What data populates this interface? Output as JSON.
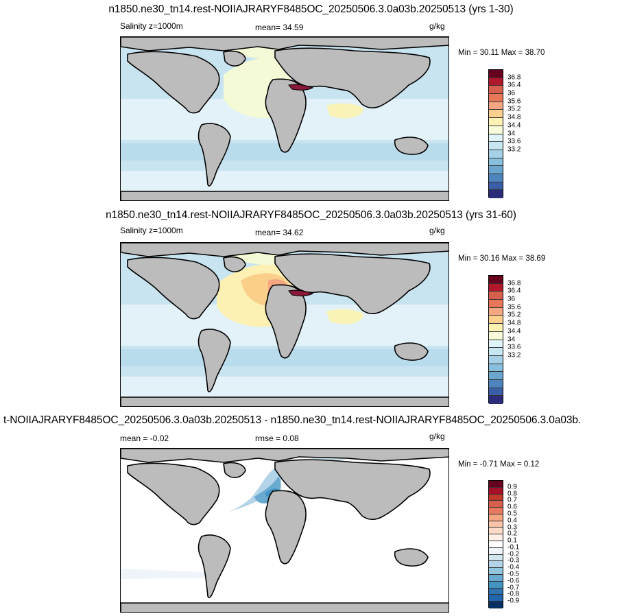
{
  "panels": [
    {
      "title": "n1850.ne30_tn14.rest-NOIIAJRARYF8485OC_20250506.3.0a03b.20250513 (yrs 1-30)",
      "left_label": "Salinity z=1000m",
      "center_label": "mean=  34.59",
      "units": "g/kg",
      "minmax": "Min =  30.11 Max =  38.70",
      "colorbar_labels": [
        "36.8",
        "36.4",
        "36",
        "35.6",
        "35.2",
        "34.8",
        "34.4",
        "34",
        "33.6",
        "33.2"
      ],
      "colorbar_colors": [
        "#67001f",
        "#b2182b",
        "#d6604d",
        "#e8775a",
        "#f4a582",
        "#fbcf8e",
        "#fdf0b3",
        "#f7fbd9",
        "#e0f3f8",
        "#c6e6f2",
        "#a5d0e6",
        "#87bfdc",
        "#6ba6cf",
        "#4f85bf",
        "#3a5ea8",
        "#2c2c7a"
      ]
    },
    {
      "title": "n1850.ne30_tn14.rest-NOIIAJRARYF8485OC_20250506.3.0a03b.20250513 (yrs 31-60)",
      "left_label": "Salinity z=1000m",
      "center_label": "mean=  34.62",
      "units": "g/kg",
      "minmax": "Min =  30.16 Max =  38.69",
      "colorbar_labels": [
        "36.8",
        "36.4",
        "36",
        "35.6",
        "35.2",
        "34.8",
        "34.4",
        "34",
        "33.6",
        "33.2"
      ],
      "colorbar_colors": [
        "#67001f",
        "#b2182b",
        "#d6604d",
        "#e8775a",
        "#f4a582",
        "#fbcf8e",
        "#fdf0b3",
        "#f7fbd9",
        "#e0f3f8",
        "#c6e6f2",
        "#a5d0e6",
        "#87bfdc",
        "#6ba6cf",
        "#4f85bf",
        "#3a5ea8",
        "#2c2c7a"
      ]
    },
    {
      "title": "t-NOIIAJRARYF8485OC_20250506.3.0a03b.20250513 - n1850.ne30_tn14.rest-NOIIAJRARYF8485OC_20250506.3.0a03b.",
      "left_label": "mean =  -0.02",
      "center_label": "rmse =   0.08",
      "units": "g/kg",
      "minmax": "Min =  -0.71 Max =   0.12",
      "colorbar_labels": [
        "0.9",
        "0.8",
        "0.7",
        "0.6",
        "0.5",
        "0.4",
        "0.3",
        "0.2",
        "0.1",
        "-0.1",
        "-0.2",
        "-0.3",
        "-0.4",
        "-0.5",
        "-0.6",
        "-0.7",
        "-0.8",
        "-0.9"
      ],
      "colorbar_colors": [
        "#67001f",
        "#a50f2a",
        "#c0392b",
        "#d6604d",
        "#e8785f",
        "#f4a582",
        "#f9c4a8",
        "#fddbc7",
        "#fff0e8",
        "#ffffff",
        "#eef4fa",
        "#d1e5f0",
        "#b3d4e8",
        "#92c5de",
        "#6aa9d0",
        "#4393c3",
        "#2f73b1",
        "#2166ac",
        "#053061"
      ]
    }
  ],
  "colors": {
    "land": "#bcbcbc",
    "coast": "#000000",
    "ocean_fresh": "#c9e4f1",
    "ocean_mid": "#e2f2f8",
    "ocean_salty": "#f4f9d6",
    "med_sea": "#8b1a3a",
    "diff_background": "#ffffff",
    "diff_negative": "#6aa9d0"
  }
}
